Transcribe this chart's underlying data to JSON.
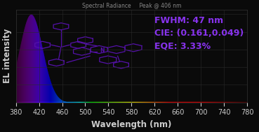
{
  "title": "Spectral Radiance     Peak @ 406 nm",
  "xlabel": "Wavelength (nm)",
  "ylabel": "EL intensity",
  "xlim": [
    380,
    780
  ],
  "ylim": [
    0,
    1.05
  ],
  "xticks": [
    380,
    420,
    460,
    500,
    540,
    580,
    620,
    660,
    700,
    740,
    780
  ],
  "peak_wavelength": 406,
  "fwhm": 47,
  "annotation_text": "FWHM: 47 nm\nCIE: (0.161,0.049)\nEQE: 3.33%",
  "annotation_color": "#8833ee",
  "background_color": "#0a0a0a",
  "grid_color": "#2a2a2a",
  "text_color": "#cccccc",
  "title_color": "#888888",
  "title_fontsize": 5.5,
  "xlabel_fontsize": 8.5,
  "ylabel_fontsize": 8.5,
  "tick_fontsize": 7,
  "annot_fontsize": 9,
  "mol_color": "#5511aa",
  "mol_lw": 0.9
}
